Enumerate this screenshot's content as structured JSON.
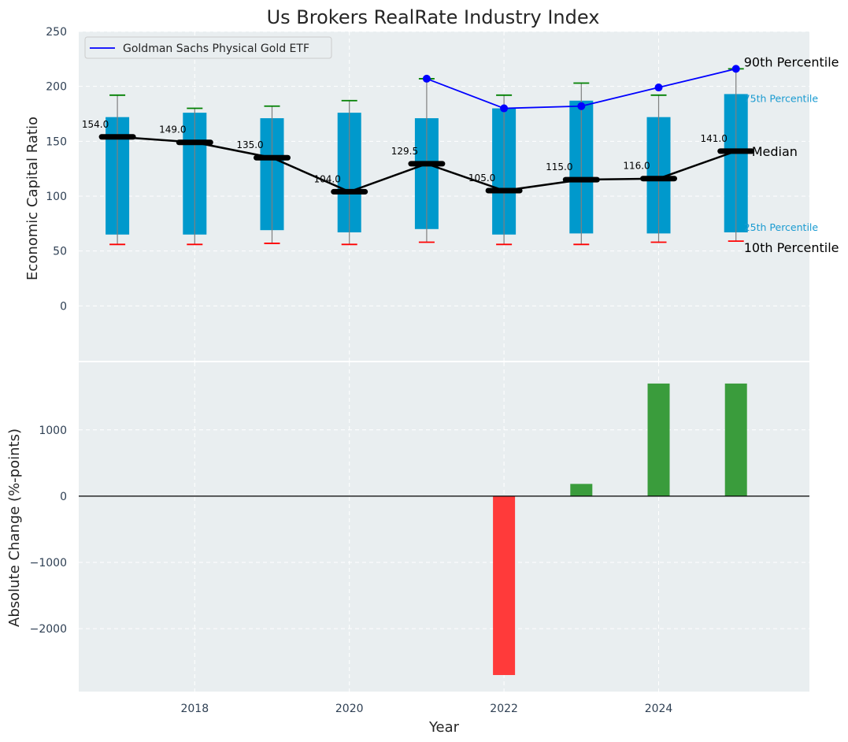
{
  "chart_data": {
    "type": "bar",
    "title": "Us Brokers RealRate Industry Index",
    "xlabel": "Year",
    "x_ticks": [
      "2018",
      "2020",
      "2022",
      "2024"
    ],
    "xlim": [
      2016.5,
      2025.95
    ],
    "top_panel": {
      "ylabel": "Economic Capital Ratio",
      "ylim": [
        -50,
        250
      ],
      "y_ticks": [
        "0",
        "50",
        "100",
        "150",
        "200",
        "250"
      ],
      "years": [
        2017,
        2018,
        2019,
        2020,
        2021,
        2022,
        2023,
        2024,
        2025
      ],
      "p10": [
        56,
        56,
        57,
        56,
        58,
        56,
        56,
        58,
        59
      ],
      "p25": [
        65,
        65,
        69,
        67,
        70,
        65,
        66,
        66,
        67
      ],
      "median": [
        154.0,
        149.0,
        135.0,
        104.0,
        129.5,
        105.0,
        115.0,
        116.0,
        141.0
      ],
      "median_labels": [
        "154.0",
        "149.0",
        "135.0",
        "104.0",
        "129.5",
        "105.0",
        "115.0",
        "116.0",
        "141.0"
      ],
      "p75": [
        172,
        176,
        171,
        176,
        171,
        180,
        187,
        172,
        193
      ],
      "p90": [
        192,
        180,
        182,
        187,
        207,
        192,
        203,
        192,
        216
      ],
      "series": [
        {
          "name": "Goldman Sachs Physical Gold ETF",
          "years": [
            2021,
            2022,
            2023,
            2024,
            2025
          ],
          "values": [
            207,
            180,
            182,
            199,
            216
          ],
          "color": "#0000ff"
        }
      ],
      "percentile_labels": {
        "p90": "90th Percentile",
        "p75": "75th Percentile",
        "median": "Median",
        "p25": "25th Percentile",
        "p10": "10th Percentile"
      },
      "legend_position": "upper left"
    },
    "bottom_panel": {
      "ylabel": "Absolute Change (%-points)",
      "ylim": [
        -2950,
        2020
      ],
      "y_ticks": [
        "−2000",
        "−1000",
        "0",
        "1000"
      ],
      "years": [
        2022,
        2023,
        2024,
        2025
      ],
      "values": [
        -2700,
        185,
        1700,
        1700
      ]
    },
    "colors": {
      "box": "#0099cc",
      "median": "#000000",
      "whisker_high": "#008000",
      "whisker_low": "#ff0000",
      "bar_positive": "#3a9c3c",
      "bar_negative": "#ff3a3a",
      "panel_background": "#e9eef0",
      "grid": "#ffffff"
    },
    "grid": true
  }
}
